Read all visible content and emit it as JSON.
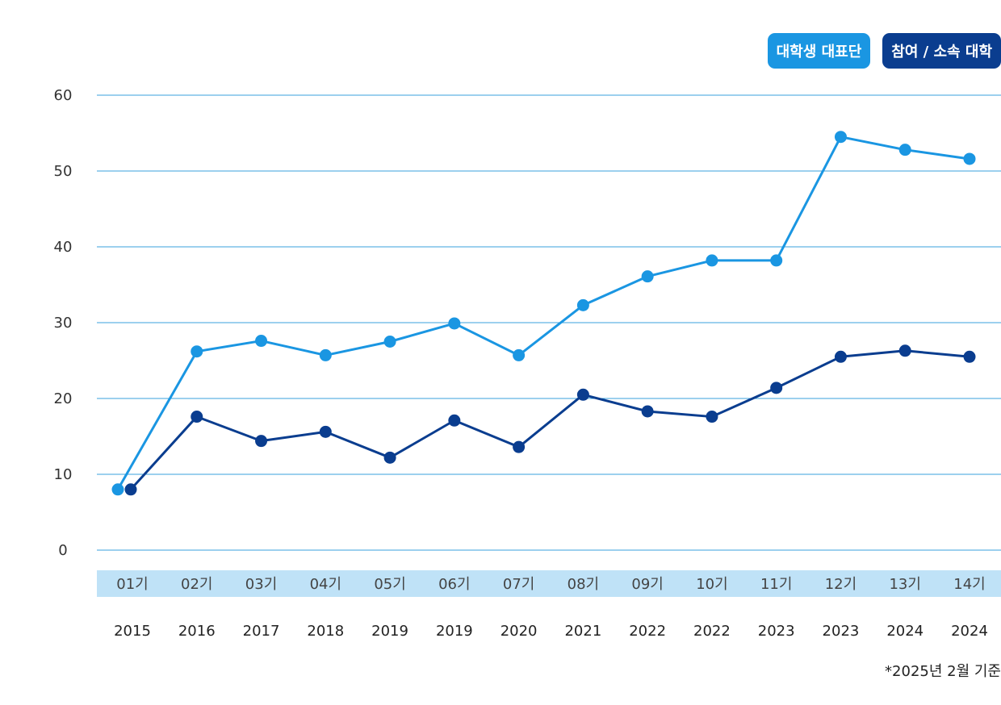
{
  "legend": [
    {
      "label": "대학생 대표단",
      "color": "#1a96e2"
    },
    {
      "label": "참여 / 소속 대학",
      "color": "#0a3d8f"
    }
  ],
  "footnote": "*2025년 2월 기준",
  "chart_data": {
    "type": "line",
    "categories": [
      "01기",
      "02기",
      "03기",
      "04기",
      "05기",
      "06기",
      "07기",
      "08기",
      "09기",
      "10기",
      "11기",
      "12기",
      "13기",
      "14기"
    ],
    "years": [
      "2015",
      "2016",
      "2017",
      "2018",
      "2019",
      "2019",
      "2020",
      "2021",
      "2022",
      "2022",
      "2023",
      "2023",
      "2024",
      "2024"
    ],
    "ylim": [
      0,
      60
    ],
    "yticks": [
      0,
      10,
      20,
      30,
      40,
      50,
      60
    ],
    "grid": true,
    "legend_position": "top-right",
    "series": [
      {
        "name": "대학생 대표단",
        "color": "#1a96e2",
        "values": [
          8,
          26.2,
          27.6,
          25.7,
          27.5,
          29.9,
          25.7,
          32.3,
          36.1,
          38.2,
          38.2,
          54.5,
          52.8,
          51.6
        ]
      },
      {
        "name": "참여 / 소속 대학",
        "color": "#0a3d8f",
        "values": [
          8,
          17.6,
          14.4,
          15.6,
          12.2,
          17.1,
          13.6,
          20.5,
          18.3,
          17.6,
          21.4,
          25.5,
          26.3,
          25.5
        ]
      }
    ]
  }
}
